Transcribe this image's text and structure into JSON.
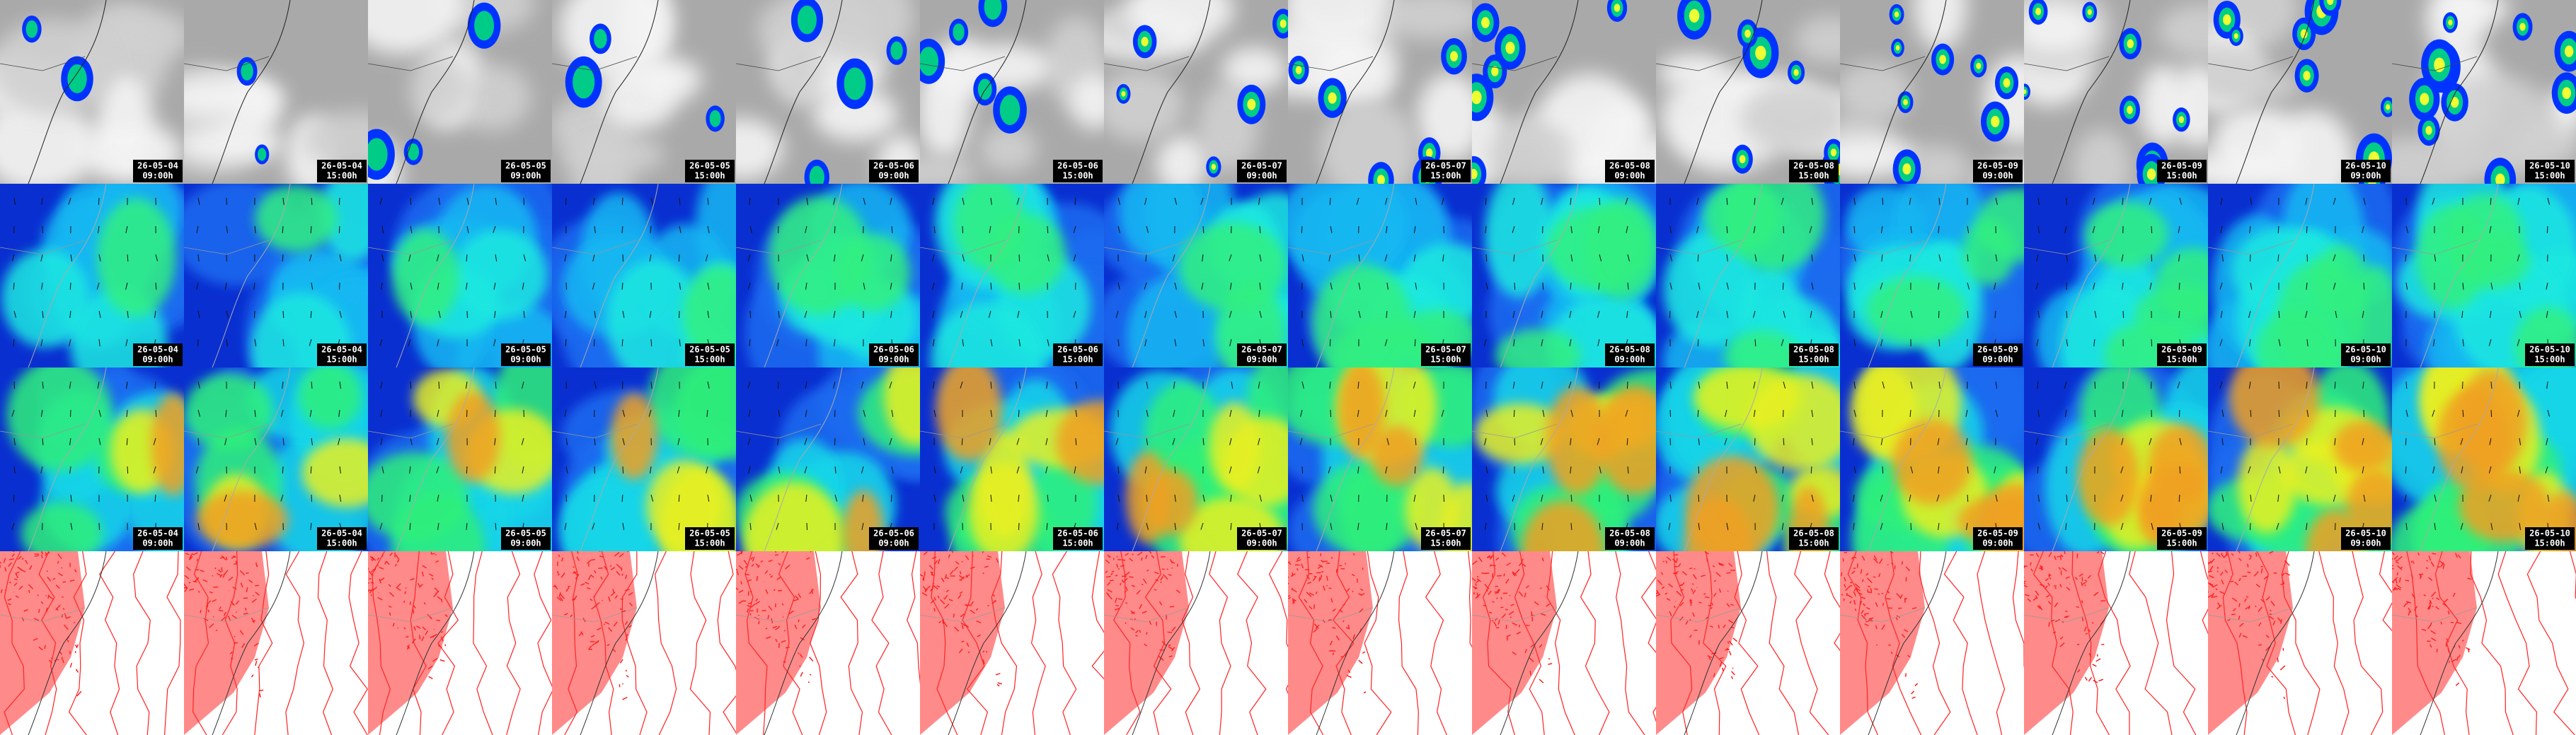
{
  "columns": [
    {
      "date": "26-05-04",
      "time": "09:00h"
    },
    {
      "date": "26-05-04",
      "time": "15:00h"
    },
    {
      "date": "26-05-05",
      "time": "09:00h"
    },
    {
      "date": "26-05-05",
      "time": "15:00h"
    },
    {
      "date": "26-05-06",
      "time": "09:00h"
    },
    {
      "date": "26-05-06",
      "time": "15:00h"
    },
    {
      "date": "26-05-07",
      "time": "09:00h"
    },
    {
      "date": "26-05-07",
      "time": "15:00h"
    },
    {
      "date": "26-05-08",
      "time": "09:00h"
    },
    {
      "date": "26-05-08",
      "time": "15:00h"
    },
    {
      "date": "26-05-09",
      "time": "09:00h"
    },
    {
      "date": "26-05-09",
      "time": "15:00h"
    },
    {
      "date": "26-05-10",
      "time": "09:00h"
    },
    {
      "date": "26-05-10",
      "time": "15:00h"
    }
  ]
}
